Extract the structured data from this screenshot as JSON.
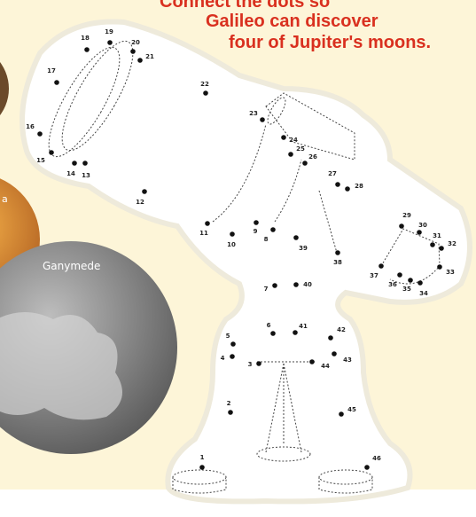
{
  "heading": {
    "lines": [
      "Connect the dots so",
      "Galileo can discover",
      "four of Jupiter's moons."
    ]
  },
  "moons": [
    "a",
    "Ganymede"
  ],
  "dots": [
    1,
    2,
    3,
    4,
    5,
    6,
    7,
    8,
    9,
    10,
    11,
    12,
    13,
    14,
    15,
    16,
    17,
    18,
    19,
    20,
    21,
    22,
    23,
    24,
    25,
    26,
    27,
    28,
    29,
    30,
    31,
    32,
    33,
    34,
    35,
    36,
    37,
    38,
    39,
    40,
    41,
    42,
    43,
    44,
    45,
    46
  ]
}
